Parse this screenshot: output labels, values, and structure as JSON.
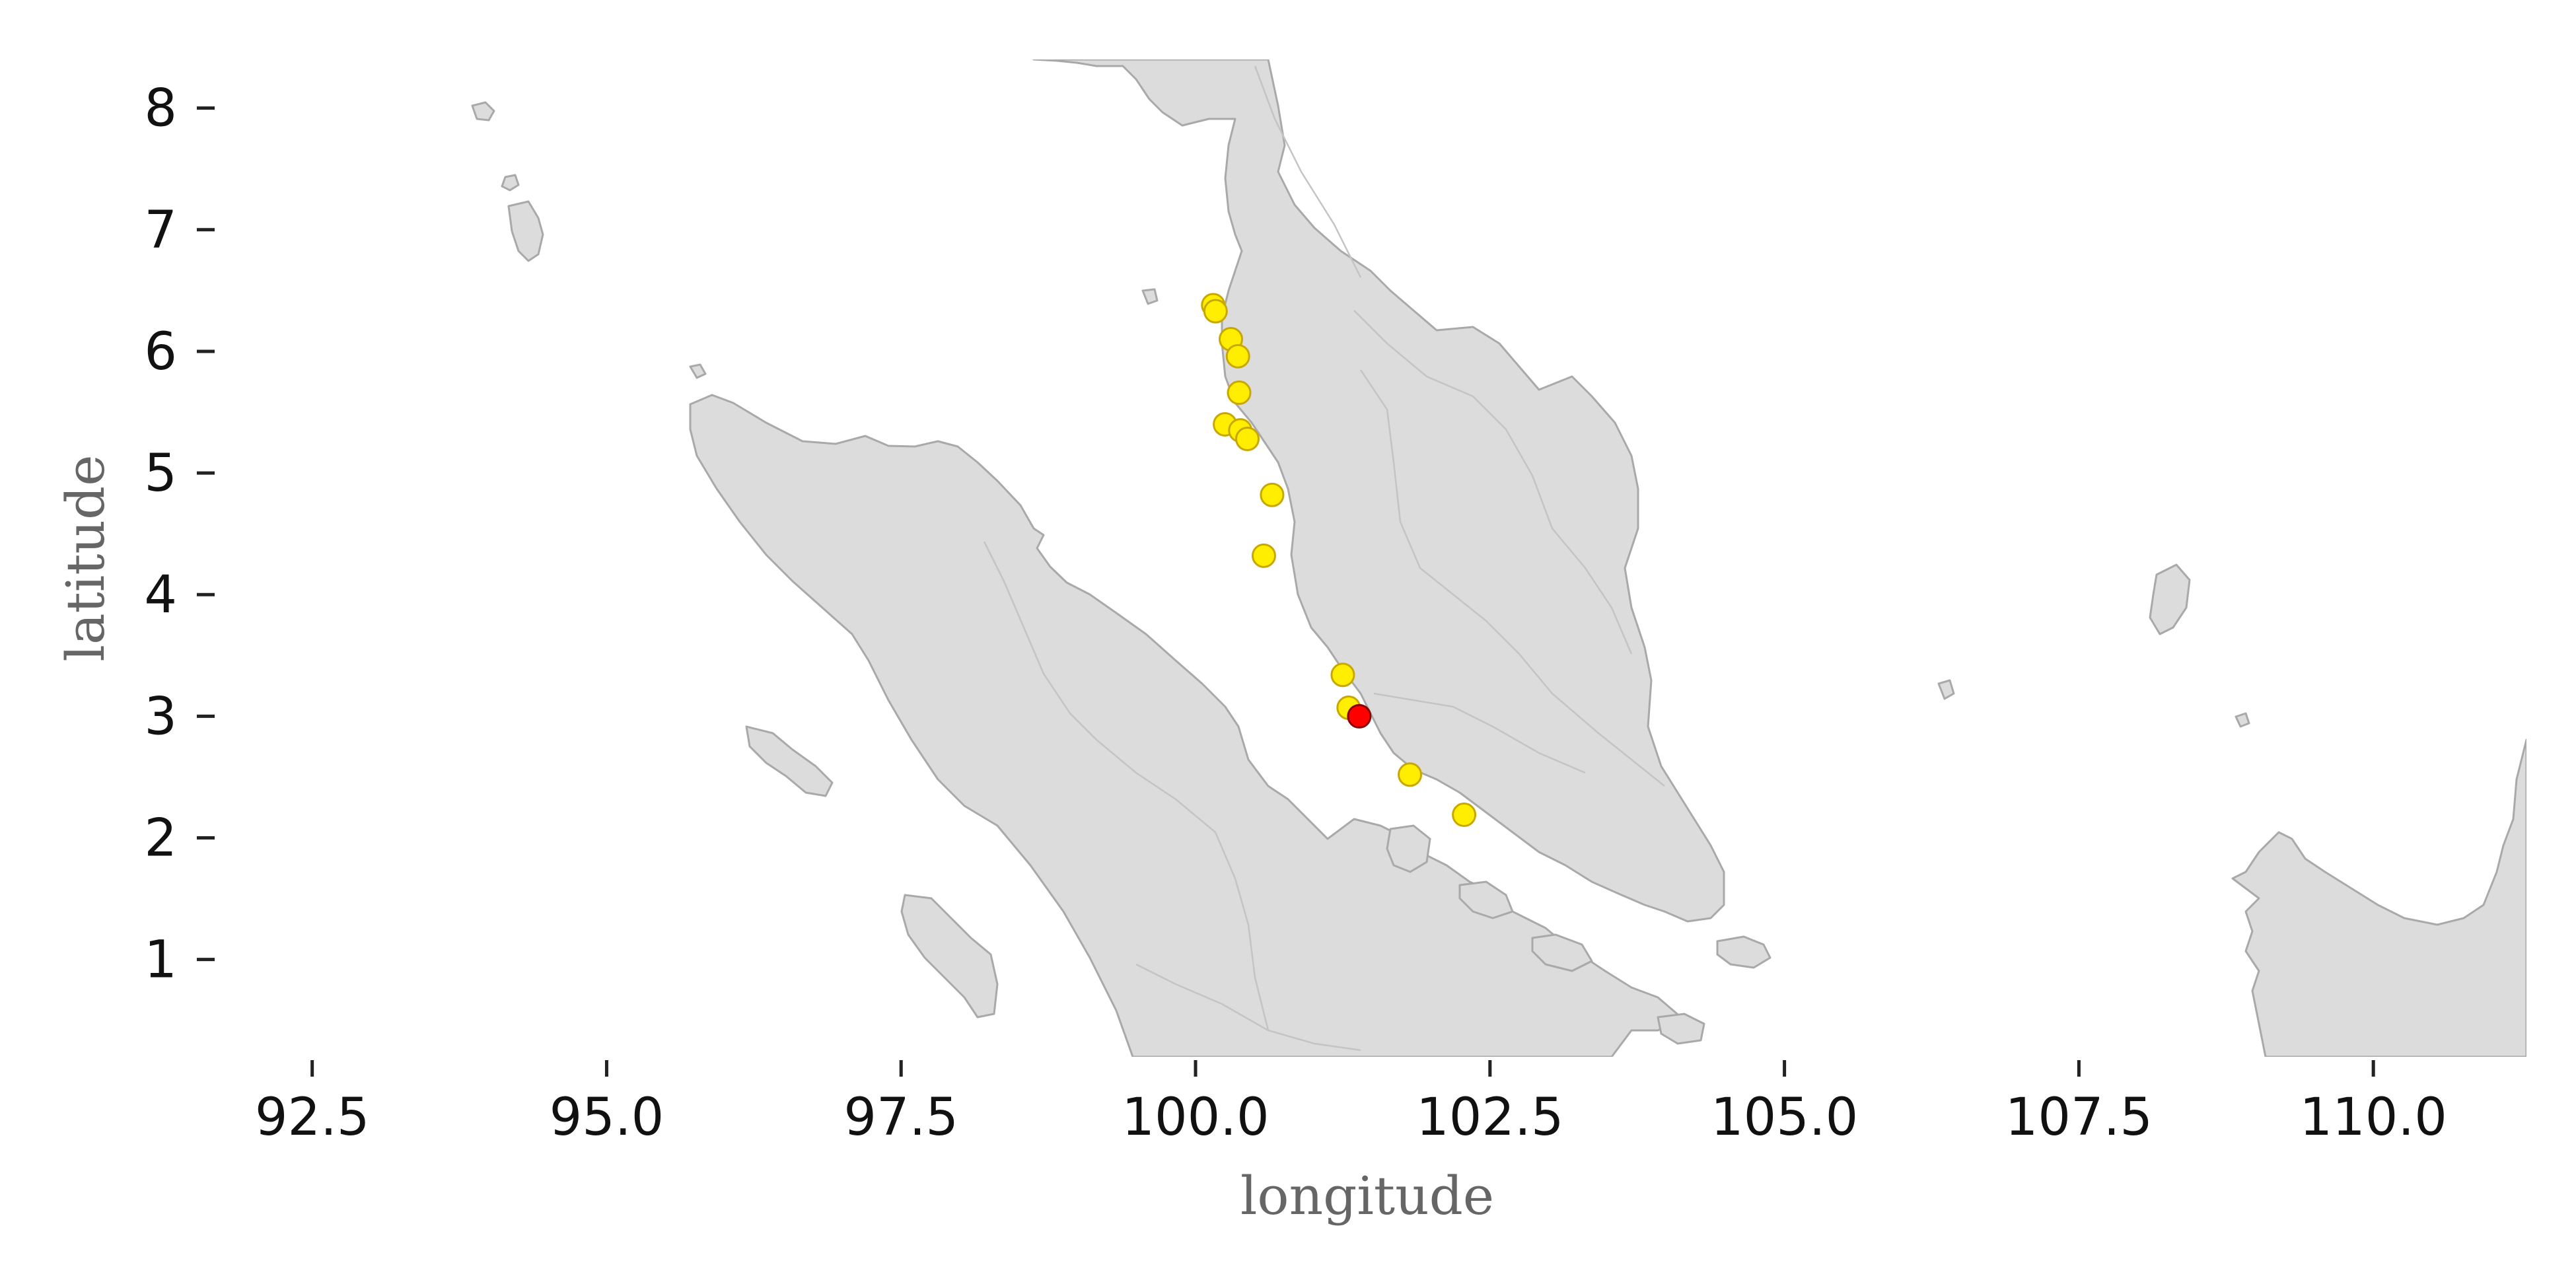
{
  "chart_data": {
    "type": "scatter",
    "xlabel": "longitude",
    "ylabel": "latitude",
    "xlim": [
      91.7,
      111.3
    ],
    "ylim": [
      0.2,
      8.4
    ],
    "x_ticks": [
      "92.5",
      "95.0",
      "97.5",
      "100.0",
      "102.5",
      "105.0",
      "107.5",
      "110.0"
    ],
    "y_ticks": [
      "1",
      "2",
      "3",
      "4",
      "5",
      "6",
      "7",
      "8"
    ],
    "grid": false,
    "colors": {
      "land": "#dcdcdc",
      "coastline": "#a9a9a9",
      "point": "#ffee00",
      "point_edge": "#c8a800",
      "highlight": "#ff0000",
      "highlight_edge": "#8b0000"
    },
    "points": [
      {
        "lon": 100.15,
        "lat": 6.38
      },
      {
        "lon": 100.17,
        "lat": 6.33
      },
      {
        "lon": 100.3,
        "lat": 6.1
      },
      {
        "lon": 100.36,
        "lat": 5.96
      },
      {
        "lon": 100.37,
        "lat": 5.66
      },
      {
        "lon": 100.25,
        "lat": 5.4
      },
      {
        "lon": 100.38,
        "lat": 5.35
      },
      {
        "lon": 100.44,
        "lat": 5.28
      },
      {
        "lon": 100.65,
        "lat": 4.82
      },
      {
        "lon": 100.58,
        "lat": 4.32
      },
      {
        "lon": 101.25,
        "lat": 3.34
      },
      {
        "lon": 101.3,
        "lat": 3.07
      },
      {
        "lon": 101.82,
        "lat": 2.52
      },
      {
        "lon": 102.28,
        "lat": 2.19
      }
    ],
    "highlight_points": [
      {
        "lon": 101.39,
        "lat": 3.0
      }
    ]
  }
}
